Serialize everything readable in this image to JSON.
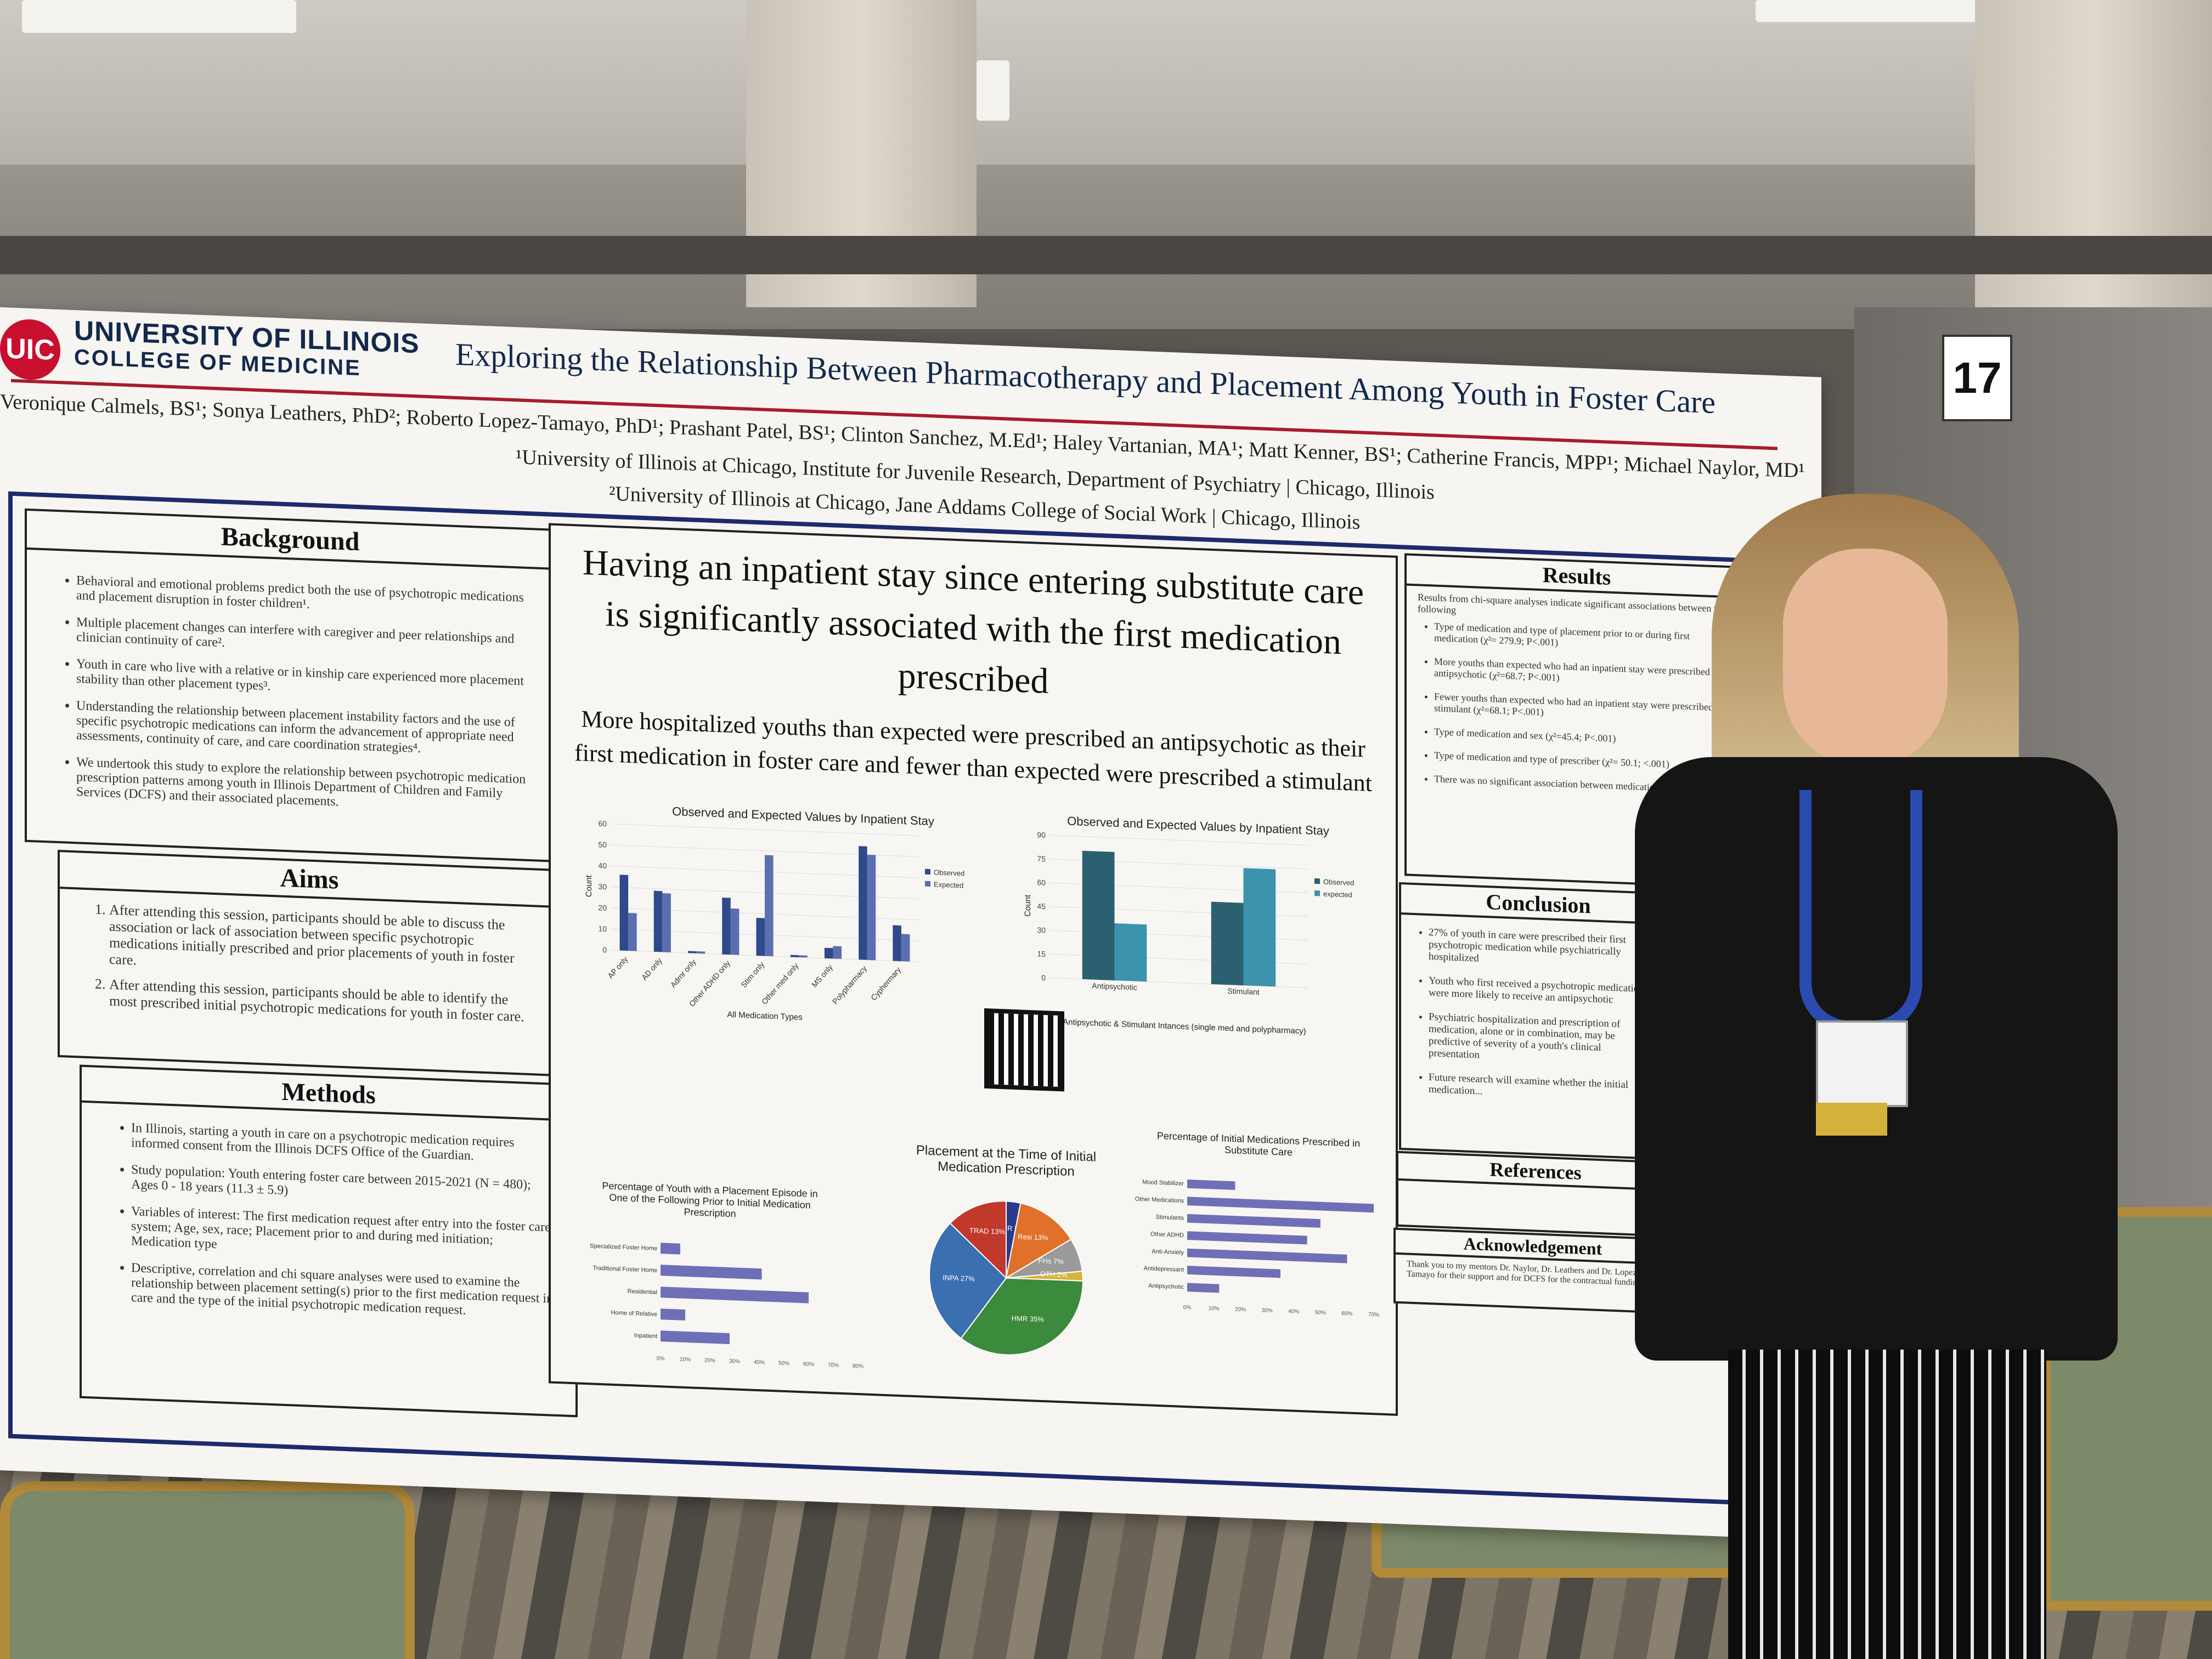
{
  "booth_number": "17",
  "poster": {
    "logo_text": "UIC",
    "university": "UNIVERSITY OF ILLINOIS",
    "college": "COLLEGE OF MEDICINE",
    "title": "Exploring the Relationship Between Pharmacotherapy and Placement Among Youth in Foster Care",
    "authors": "Veronique Calmels, BS¹; Sonya Leathers, PhD²; Roberto Lopez-Tamayo, PhD¹; Prashant Patel, BS¹; Clinton Sanchez, M.Ed¹; Haley Vartanian, MA¹; Matt Kenner, BS¹; Catherine Francis, MPP¹; Michael Naylor, MD¹",
    "affiliation1": "¹University of Illinois at Chicago, Institute for Juvenile Research, Department of Psychiatry | Chicago, Illinois",
    "affiliation2": "²University of Illinois at Chicago, Jane Addams College of Social Work | Chicago, Illinois",
    "background": {
      "heading": "Background",
      "items": [
        "Behavioral and emotional problems predict both the use of psychotropic medications and placement disruption in foster children¹.",
        "Multiple placement changes can interfere with caregiver and peer relationships and clinician continuity of care².",
        "Youth in care who live with a relative or in kinship care experienced more placement stability than other placement types³.",
        "Understanding the relationship between placement instability factors and the use of specific psychotropic medications can inform the advancement of appropriate need assessments, continuity of care, and care coordination strategies⁴.",
        "We undertook this study to explore the relationship between psychotropic medication prescription patterns among youth in Illinois Department of Children and Family Services (DCFS) and their associated placements."
      ]
    },
    "aims": {
      "heading": "Aims",
      "items": [
        "After attending this session, participants should be able to discuss the association or lack of association between specific psychotropic medications initially prescribed and prior placements of youth in foster care.",
        "After attending this session, participants should be able to identify the most prescribed initial psychotropic medications for youth in foster care."
      ]
    },
    "methods": {
      "heading": "Methods",
      "items": [
        "In Illinois, starting a youth in care on a psychotropic medication requires informed consent from the Illinois DCFS Office of the Guardian.",
        "Study population: Youth entering foster care between 2015-2021 (N = 480); Ages 0 - 18 years (11.3 ± 5.9)",
        "Variables of interest: The first medication request after entry into the foster care system; Age, sex, race; Placement prior to and during med initiation; Medication type",
        "Descriptive, correlation and chi square analyses were used to examine the relationship between placement setting(s) prior to the first medication request in care and the type of the initial psychotropic medication request."
      ]
    },
    "headline": "Having an inpatient stay since entering substitute care is significantly associated with the first medication prescribed",
    "subheadline": "More hospitalized youths than expected were prescribed an antipsychotic as their first medication in foster care and fewer than expected were prescribed a stimulant",
    "results": {
      "heading": "Results",
      "intro": "Results from chi-square analyses indicate significant associations between the following",
      "items": [
        "Type of medication and type of placement prior to or during first medication (χ²= 279.9; P<.001)",
        "More youths than expected who had an inpatient stay were prescribed an antipsychotic (χ²=68.7; P<.001)",
        "Fewer youths than expected who had an inpatient stay were prescribed a stimulant (χ²=68.1; P<.001)",
        "Type of medication and sex (χ²=45.4; P<.001)",
        "Type of medication and type of prescriber (χ²= 50.1; <.001)",
        "There was no significant association between medication type..."
      ]
    },
    "conclusion": {
      "heading": "Conclusion",
      "items": [
        "27% of youth in care were prescribed their first psychotropic medication while psychiatrically hospitalized",
        "Youth who first received a psychotropic medication were more likely to receive an antipsychotic",
        "Psychiatric hospitalization and prescription of medication, alone or in combination, may be predictive of severity of a youth's clinical presentation",
        "Future research will examine whether the initial medication..."
      ]
    },
    "references_heading": "References",
    "acknowledgement": {
      "heading": "Acknowledgement",
      "text": "Thank you to my mentors Dr. Naylor, Dr. Leathers and Dr. Lopez-Tamayo for their support and for DCFS for the contractual funding"
    }
  },
  "chart_data": [
    {
      "type": "bar",
      "title": "Observed and Expected Values by Inpatient Stay",
      "xlabel": "All Medication Types",
      "ylabel": "Count",
      "ylim": [
        0,
        60
      ],
      "categories": [
        "AP only",
        "AD only",
        "Adrnr only",
        "Other ADHD only",
        "Stim only",
        "Other med only",
        "MS only",
        "Polypharmacy",
        "Cyphermary"
      ],
      "series": [
        {
          "name": "Observed",
          "values": [
            36,
            29,
            1,
            27,
            18,
            1,
            5,
            54,
            17
          ]
        },
        {
          "name": "Expected",
          "values": [
            18,
            28,
            1,
            22,
            48,
            1,
            6,
            50,
            13
          ]
        }
      ],
      "colors": {
        "Observed": "#2e4a8a",
        "Expected": "#5b6fb0"
      }
    },
    {
      "type": "bar",
      "title": "Observed and Expected Values by Inpatient Stay",
      "xlabel": "All Antipsychotic & Stimulant Intances (single med and polypharmacy)",
      "ylabel": "Count",
      "ylim": [
        0,
        90
      ],
      "categories": [
        "Antipsychotic",
        "Stimulant"
      ],
      "series": [
        {
          "name": "Observed",
          "values": [
            81,
            52
          ]
        },
        {
          "name": "expected",
          "values": [
            36,
            74
          ]
        }
      ],
      "colors": {
        "Observed": "#2b6070",
        "expected": "#3b93ad"
      }
    },
    {
      "type": "bar",
      "title": "Percentage of Youth with a Placement Episode in One of the Following Prior to Initial Medication Prescription",
      "categories": [
        "Specialized Foster Home",
        "Traditional Foster Home",
        "Residential",
        "Home of Relative",
        "Inpatient"
      ],
      "values": [
        8,
        41,
        60,
        10,
        28
      ],
      "xlim": [
        0,
        80
      ]
    },
    {
      "type": "pie",
      "title": "Placement at the Time of Initial Medication Prescription",
      "labels": [
        "EMR",
        "Resi",
        "FHs",
        "OTH",
        "HMR",
        "INPA",
        "TRAD"
      ],
      "values": [
        3,
        13,
        7,
        2,
        35,
        27,
        13
      ],
      "colors": [
        "#2b3a8a",
        "#e0702a",
        "#9a9a9a",
        "#d9b23a",
        "#3c8a3c",
        "#3a6fb0",
        "#c0392b"
      ]
    },
    {
      "type": "bar",
      "title": "Percentage of Initial Medications Prescribed in Substitute Care",
      "categories": [
        "Mood Stabilizer",
        "Other Medications",
        "Stimulants",
        "Other ADHD",
        "Anti-Anxiety",
        "Antidepressant",
        "Antipsychotic"
      ],
      "values": [
        18,
        70,
        50,
        45,
        60,
        35,
        12
      ],
      "xlim": [
        0,
        70
      ]
    }
  ]
}
